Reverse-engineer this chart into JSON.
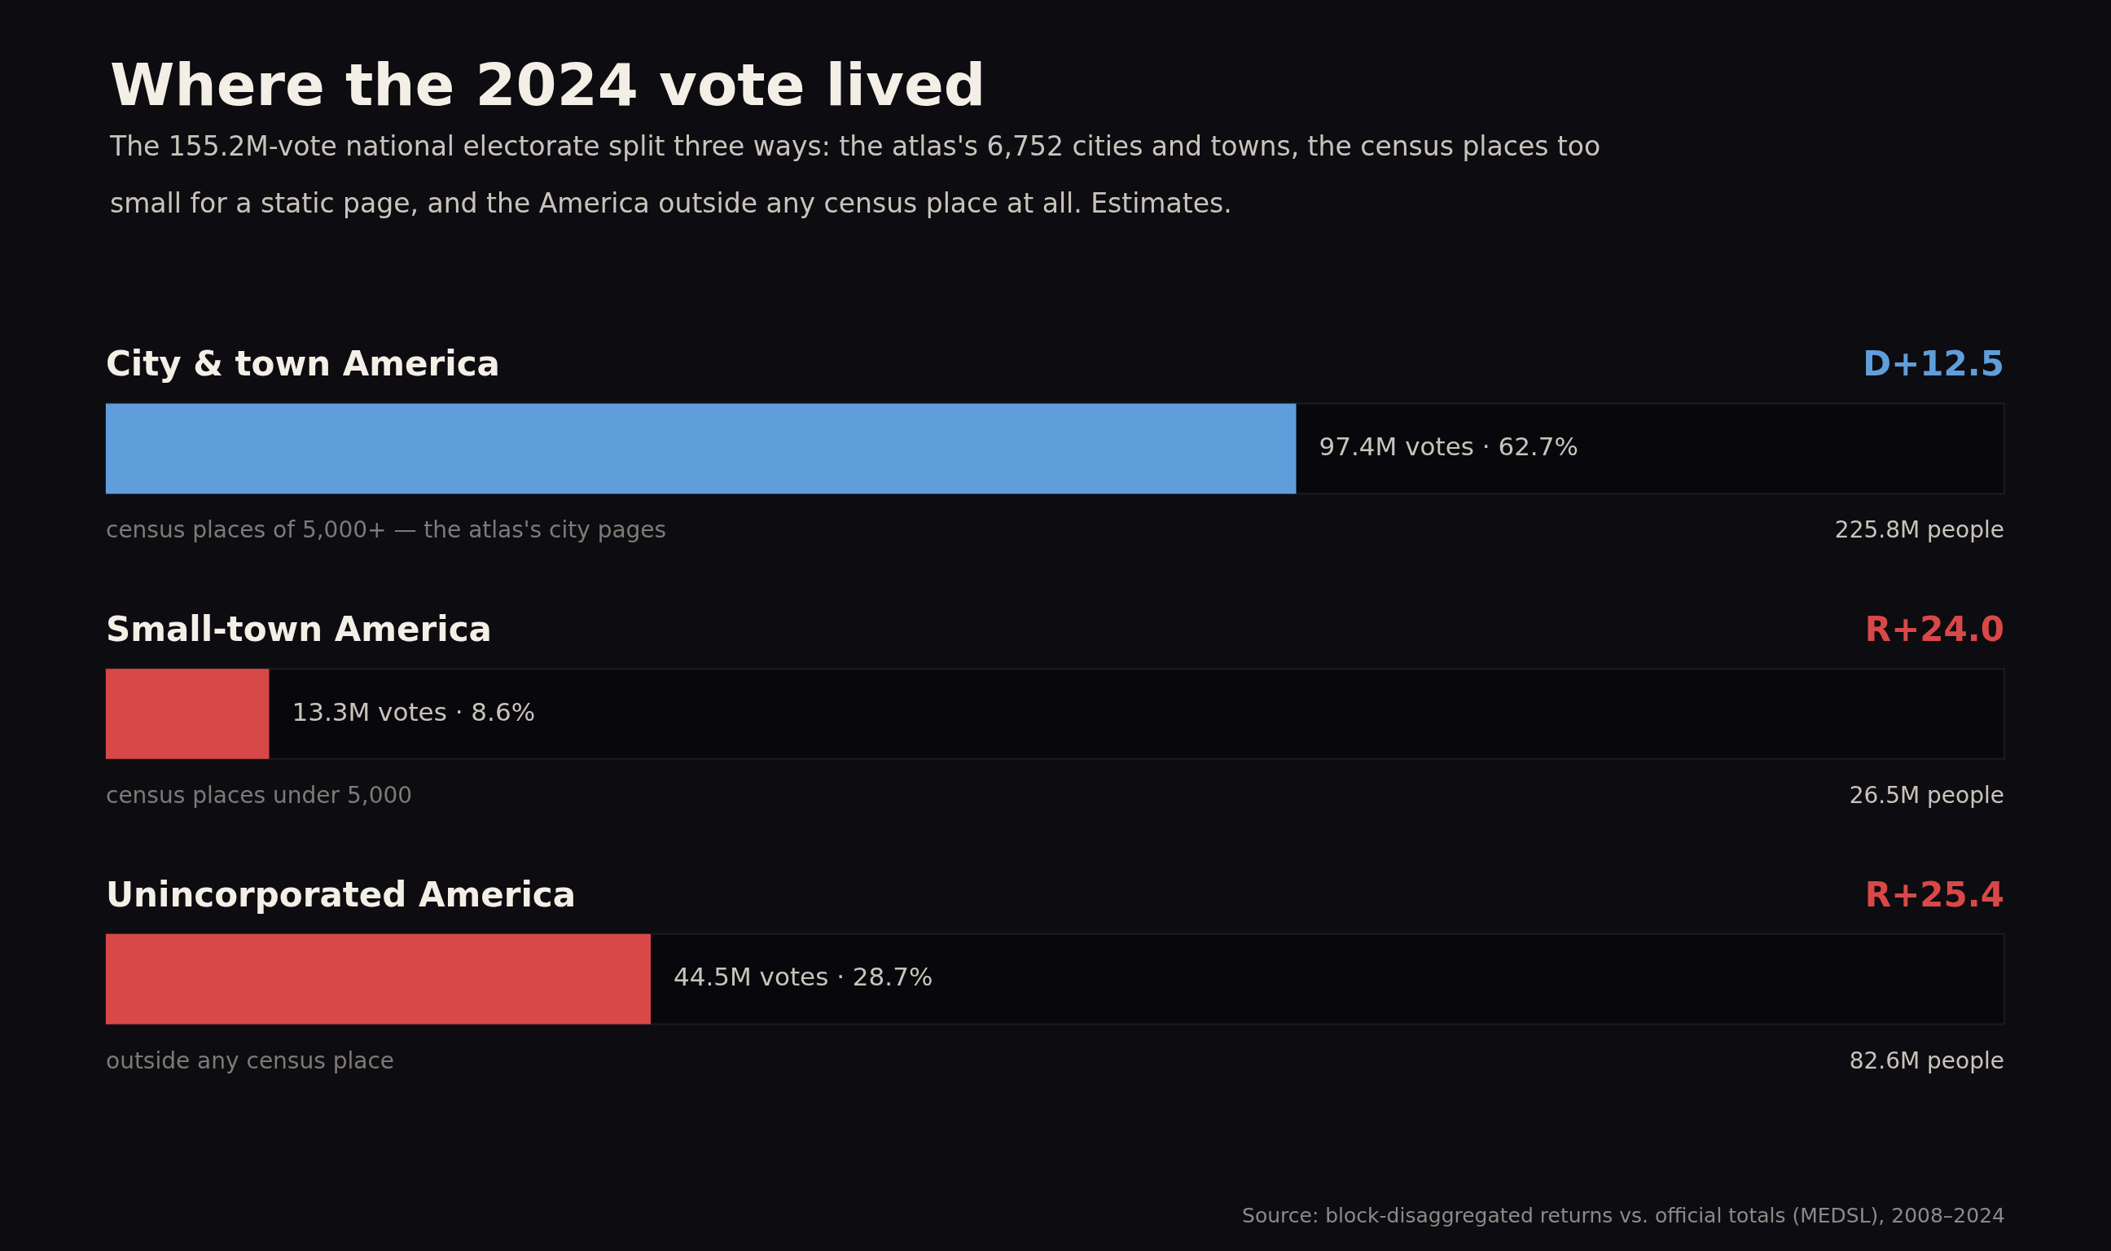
{
  "chart_data": {
    "type": "bar",
    "orientation": "horizontal",
    "title": "Where the 2024 vote lived",
    "subtitle": "The 155.2M-vote national electorate split three ways: the atlas's 6,752 cities and towns, the census places too small for a static page, and the America outside any census place at all. Estimates.",
    "categories": [
      "City & town America",
      "Small-town America",
      "Unincorporated America"
    ],
    "values": [
      62.7,
      8.6,
      28.7
    ],
    "colors": [
      "#5f9edb",
      "#d94848",
      "#d94848"
    ],
    "value_labels": [
      "97.4M votes · 62.7%",
      "13.3M votes · 8.6%",
      "44.5M votes · 28.7%"
    ],
    "xlim": [
      0,
      100
    ],
    "tick_labels": false,
    "annotations": [
      "D+12.5",
      "census places of 5,000+ — the atlas's city pages",
      "225.8M people",
      "R+24.0",
      "census places under 5,000",
      "26.5M people",
      "R+25.4",
      "outside any census place",
      "82.6M people",
      "Source: block-disaggregated returns vs. official totals (MEDSL), 2008–2024"
    ]
  }
}
